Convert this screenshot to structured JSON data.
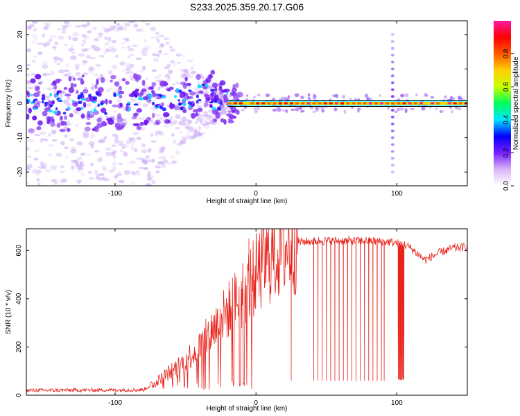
{
  "title": "S233.2025.359.20.17.G06",
  "charts": [
    {
      "type": "heatmap",
      "xlabel": "Height of straight line (km)",
      "ylabel": "Frequency (Hz)",
      "xlim": [
        -163,
        150
      ],
      "ylim": [
        -24,
        24
      ],
      "xticks": [
        -100,
        0,
        100
      ],
      "yticks": [
        -20,
        -10,
        0,
        10,
        20
      ],
      "colorbar": {
        "label": "Normalized spectral amplitude",
        "range": [
          0,
          1
        ],
        "ticks": [
          "0.0",
          "0.2",
          "0.4",
          "0.6",
          "0.8"
        ],
        "tick_values": [
          0,
          0.2,
          0.4,
          0.6,
          0.8
        ],
        "colors": [
          "#ffffff",
          "#d8b4f8",
          "#7a1fff",
          "#0000ff",
          "#00e5ff",
          "#00ff5a",
          "#c8ff00",
          "#ffd000",
          "#ff5a00",
          "#ff0000",
          "#ff1aa0"
        ]
      },
      "features": {
        "noise_region_x": [
          -163,
          -80
        ],
        "transition_x": [
          -80,
          -20
        ],
        "carrier_start_x": -20,
        "carrier_frequency_hz": 0,
        "vertical_spike_x": 97,
        "vertical_spike_ylim": [
          -20,
          20
        ]
      }
    },
    {
      "type": "line",
      "xlabel": "Height of straight line (km)",
      "ylabel": "SNR (10 * v/v)",
      "xlim": [
        -163,
        150
      ],
      "ylim": [
        0,
        690
      ],
      "xticks": [
        -100,
        0,
        100
      ],
      "yticks": [
        0,
        200,
        400,
        600
      ],
      "series": [
        {
          "name": "SNR",
          "color": "#e8231b",
          "profile": {
            "x": [
              -163,
              -80,
              -75,
              -55,
              -40,
              -30,
              -20,
              -10,
              0,
              10,
              20,
              30,
              45,
              60,
              80,
              95,
              100,
              105,
              110,
              120,
              130,
              140,
              150
            ],
            "y": [
              20,
              22,
              40,
              120,
              200,
              280,
              350,
              420,
              500,
              570,
              610,
              635,
              640,
              640,
              640,
              635,
              630,
              625,
              610,
              560,
              590,
              610,
              615
            ]
          },
          "dips_x": [
            25,
            41,
            44,
            47,
            50,
            53,
            56,
            59,
            62,
            65,
            68,
            71,
            74,
            77,
            80,
            83,
            86,
            89,
            91
          ],
          "dip_floor": 60,
          "deep_gap_x": [
            101,
            105
          ],
          "deep_gap_floor": 60,
          "spikes": [
            {
              "x": -5,
              "y": 650
            },
            {
              "x": -10,
              "y": 440
            },
            {
              "x": -12,
              "y": 450
            }
          ]
        }
      ]
    }
  ]
}
